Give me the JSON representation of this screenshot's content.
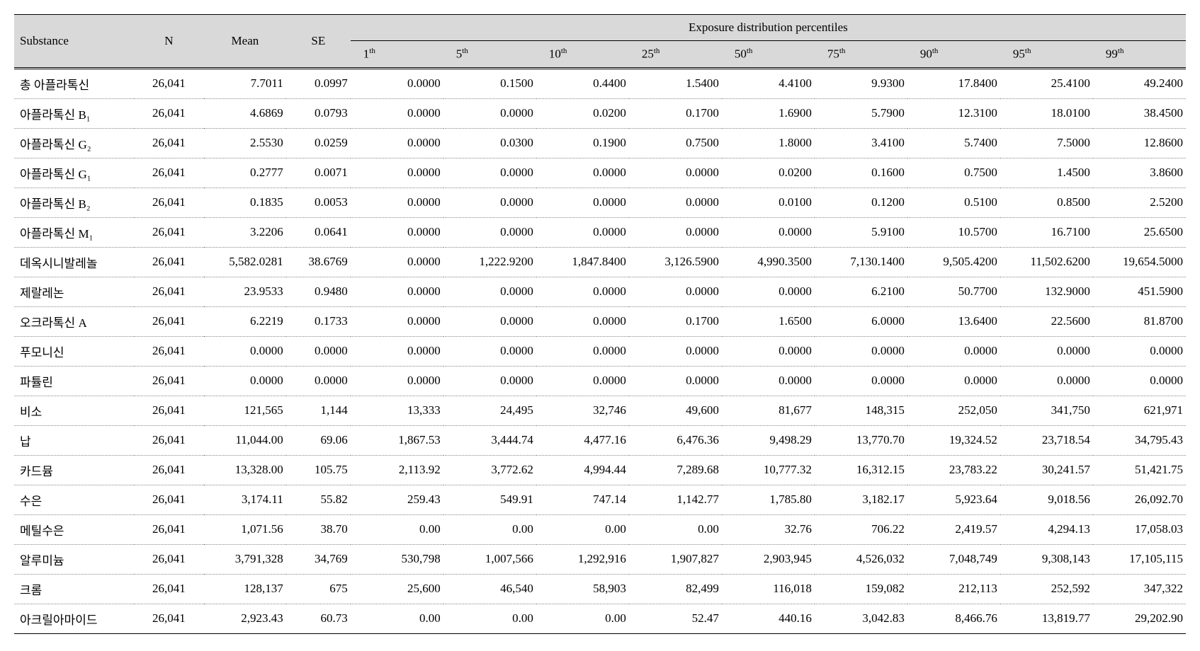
{
  "table": {
    "type": "table",
    "background_color": "#ffffff",
    "header_bg": "#d9d9d9",
    "border_color": "#000000",
    "row_border_style": "dotted",
    "font_family": "Times New Roman",
    "header_font_size_pt": 17,
    "body_font_size_pt": 17,
    "columns": {
      "substance": "Substance",
      "n": "N",
      "mean": "Mean",
      "se": "SE",
      "group": "Exposure distribution percentiles",
      "percentiles": [
        {
          "label": "1",
          "suffix": "th"
        },
        {
          "label": "5",
          "suffix": "th"
        },
        {
          "label": "10",
          "suffix": "th"
        },
        {
          "label": "25",
          "suffix": "th"
        },
        {
          "label": "50",
          "suffix": "th"
        },
        {
          "label": "75",
          "suffix": "th"
        },
        {
          "label": "90",
          "suffix": "th"
        },
        {
          "label": "95",
          "suffix": "th"
        },
        {
          "label": "99",
          "suffix": "th"
        }
      ]
    },
    "rows": [
      {
        "substance": "총 아플라톡신",
        "n": "26,041",
        "mean": "7.7011",
        "se": "0.0997",
        "p": [
          "0.0000",
          "0.1500",
          "0.4400",
          "1.5400",
          "4.4100",
          "9.9300",
          "17.8400",
          "25.4100",
          "49.2400"
        ]
      },
      {
        "substance": "아플라톡신 B₁",
        "n": "26,041",
        "mean": "4.6869",
        "se": "0.0793",
        "p": [
          "0.0000",
          "0.0000",
          "0.0200",
          "0.1700",
          "1.6900",
          "5.7900",
          "12.3100",
          "18.0100",
          "38.4500"
        ]
      },
      {
        "substance": "아플라톡신 G₂",
        "n": "26,041",
        "mean": "2.5530",
        "se": "0.0259",
        "p": [
          "0.0000",
          "0.0300",
          "0.1900",
          "0.7500",
          "1.8000",
          "3.4100",
          "5.7400",
          "7.5000",
          "12.8600"
        ]
      },
      {
        "substance": "아플라톡신 G₁",
        "n": "26,041",
        "mean": "0.2777",
        "se": "0.0071",
        "p": [
          "0.0000",
          "0.0000",
          "0.0000",
          "0.0000",
          "0.0200",
          "0.1600",
          "0.7500",
          "1.4500",
          "3.8600"
        ]
      },
      {
        "substance": "아플라톡신 B₂",
        "n": "26,041",
        "mean": "0.1835",
        "se": "0.0053",
        "p": [
          "0.0000",
          "0.0000",
          "0.0000",
          "0.0000",
          "0.0100",
          "0.1200",
          "0.5100",
          "0.8500",
          "2.5200"
        ]
      },
      {
        "substance": "아플라톡신 M₁",
        "n": "26,041",
        "mean": "3.2206",
        "se": "0.0641",
        "p": [
          "0.0000",
          "0.0000",
          "0.0000",
          "0.0000",
          "0.0000",
          "5.9100",
          "10.5700",
          "16.7100",
          "25.6500"
        ]
      },
      {
        "substance": "데옥시니발레놀",
        "n": "26,041",
        "mean": "5,582.0281",
        "se": "38.6769",
        "p": [
          "0.0000",
          "1,222.9200",
          "1,847.8400",
          "3,126.5900",
          "4,990.3500",
          "7,130.1400",
          "9,505.4200",
          "11,502.6200",
          "19,654.5000"
        ]
      },
      {
        "substance": "제랄레논",
        "n": "26,041",
        "mean": "23.9533",
        "se": "0.9480",
        "p": [
          "0.0000",
          "0.0000",
          "0.0000",
          "0.0000",
          "0.0000",
          "6.2100",
          "50.7700",
          "132.9000",
          "451.5900"
        ]
      },
      {
        "substance": "오크라톡신 A",
        "n": "26,041",
        "mean": "6.2219",
        "se": "0.1733",
        "p": [
          "0.0000",
          "0.0000",
          "0.0000",
          "0.1700",
          "1.6500",
          "6.0000",
          "13.6400",
          "22.5600",
          "81.8700"
        ]
      },
      {
        "substance": "푸모니신",
        "n": "26,041",
        "mean": "0.0000",
        "se": "0.0000",
        "p": [
          "0.0000",
          "0.0000",
          "0.0000",
          "0.0000",
          "0.0000",
          "0.0000",
          "0.0000",
          "0.0000",
          "0.0000"
        ]
      },
      {
        "substance": "파튤린",
        "n": "26,041",
        "mean": "0.0000",
        "se": "0.0000",
        "p": [
          "0.0000",
          "0.0000",
          "0.0000",
          "0.0000",
          "0.0000",
          "0.0000",
          "0.0000",
          "0.0000",
          "0.0000"
        ]
      },
      {
        "substance": "비소",
        "n": "26,041",
        "mean": "121,565",
        "se": "1,144",
        "p": [
          "13,333",
          "24,495",
          "32,746",
          "49,600",
          "81,677",
          "148,315",
          "252,050",
          "341,750",
          "621,971"
        ]
      },
      {
        "substance": "납",
        "n": "26,041",
        "mean": "11,044.00",
        "se": "69.06",
        "p": [
          "1,867.53",
          "3,444.74",
          "4,477.16",
          "6,476.36",
          "9,498.29",
          "13,770.70",
          "19,324.52",
          "23,718.54",
          "34,795.43"
        ]
      },
      {
        "substance": "카드뮴",
        "n": "26,041",
        "mean": "13,328.00",
        "se": "105.75",
        "p": [
          "2,113.92",
          "3,772.62",
          "4,994.44",
          "7,289.68",
          "10,777.32",
          "16,312.15",
          "23,783.22",
          "30,241.57",
          "51,421.75"
        ]
      },
      {
        "substance": "수은",
        "n": "26,041",
        "mean": "3,174.11",
        "se": "55.82",
        "p": [
          "259.43",
          "549.91",
          "747.14",
          "1,142.77",
          "1,785.80",
          "3,182.17",
          "5,923.64",
          "9,018.56",
          "26,092.70"
        ]
      },
      {
        "substance": "메틸수은",
        "n": "26,041",
        "mean": "1,071.56",
        "se": "38.70",
        "p": [
          "0.00",
          "0.00",
          "0.00",
          "0.00",
          "32.76",
          "706.22",
          "2,419.57",
          "4,294.13",
          "17,058.03"
        ]
      },
      {
        "substance": "알루미늄",
        "n": "26,041",
        "mean": "3,791,328",
        "se": "34,769",
        "p": [
          "530,798",
          "1,007,566",
          "1,292,916",
          "1,907,827",
          "2,903,945",
          "4,526,032",
          "7,048,749",
          "9,308,143",
          "17,105,115"
        ]
      },
      {
        "substance": "크롬",
        "n": "26,041",
        "mean": "128,137",
        "se": "675",
        "p": [
          "25,600",
          "46,540",
          "58,903",
          "82,499",
          "116,018",
          "159,082",
          "212,113",
          "252,592",
          "347,322"
        ]
      },
      {
        "substance": "아크릴아마이드",
        "n": "26,041",
        "mean": "2,923.43",
        "se": "60.73",
        "p": [
          "0.00",
          "0.00",
          "0.00",
          "52.47",
          "440.16",
          "3,042.83",
          "8,466.76",
          "13,819.77",
          "29,202.90"
        ]
      }
    ]
  }
}
